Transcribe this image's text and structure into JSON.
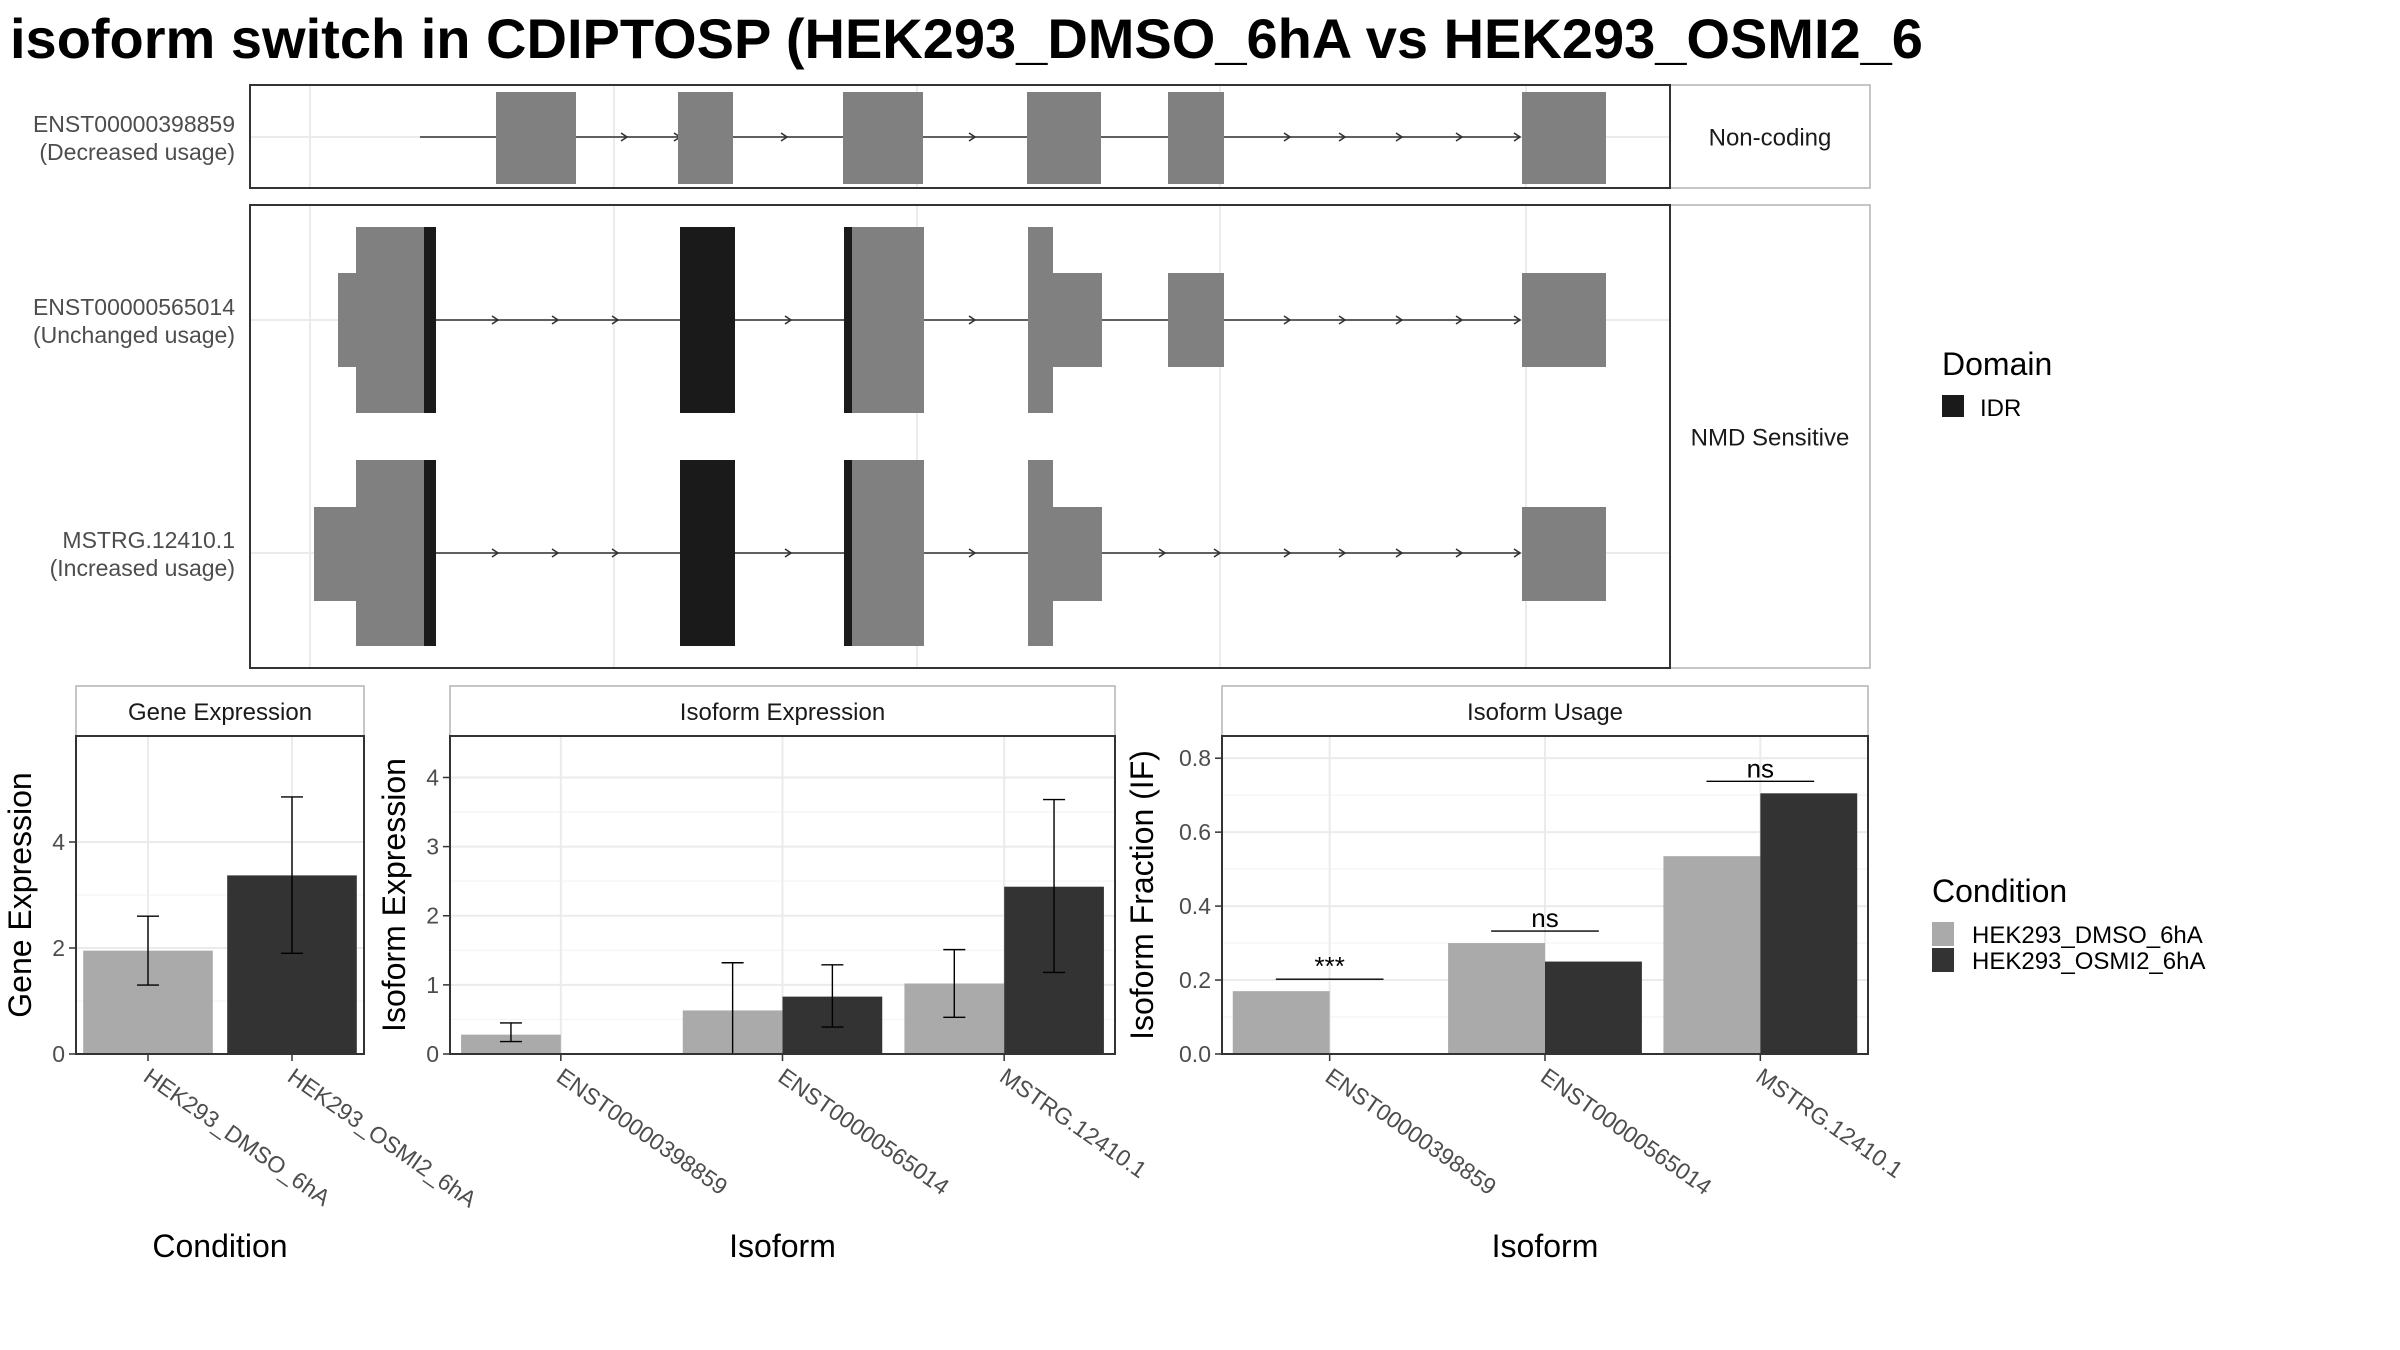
{
  "title": "isoform switch in CDIPTOSP (HEK293_DMSO_6hA vs HEK293_OSMI2_6",
  "colors": {
    "dmso": "#aaaaaa",
    "osmi2": "#333333",
    "exon": "#808080",
    "idr": "#1a1a1a",
    "strip_bg": "#ffffff",
    "grid": "#ebebeb",
    "panel_border": "#333333"
  },
  "structure": {
    "groups": [
      {
        "label": "Non-coding",
        "isoforms": [
          "ENST00000398859"
        ]
      },
      {
        "label": "NMD Sensitive",
        "isoforms": [
          "ENST00000565014",
          "MSTRG.12410.1"
        ]
      }
    ],
    "isoforms": [
      {
        "id": "ENST00000398859",
        "usage": "(Decreased usage)"
      },
      {
        "id": "ENST00000565014",
        "usage": "(Unchanged usage)"
      },
      {
        "id": "MSTRG.12410.1",
        "usage": "(Increased usage)"
      }
    ],
    "domain_legend_title": "Domain",
    "domain_legend_items": [
      "IDR"
    ]
  },
  "chart_data": [
    {
      "type": "bar",
      "title": "Gene Expression",
      "xlabel": "Condition",
      "ylabel": "Gene Expression",
      "categories": [
        "HEK293_DMSO_6hA",
        "HEK293_OSMI2_6hA"
      ],
      "values": [
        1.95,
        3.37
      ],
      "error_low": [
        1.3,
        1.9
      ],
      "error_high": [
        2.6,
        4.85
      ],
      "ylim": [
        0,
        6
      ],
      "yticks": [
        0,
        2,
        4
      ]
    },
    {
      "type": "bar",
      "title": "Isoform Expression",
      "xlabel": "Isoform",
      "ylabel": "Isoform Expression",
      "categories": [
        "ENST00000398859",
        "ENST00000565014",
        "MSTRG.12410.1"
      ],
      "series": [
        {
          "name": "HEK293_DMSO_6hA",
          "values": [
            0.28,
            0.63,
            1.02
          ],
          "error_low": [
            0.18,
            0.0,
            0.53
          ],
          "error_high": [
            0.45,
            1.32,
            1.51
          ]
        },
        {
          "name": "HEK293_OSMI2_6hA",
          "values": [
            0.0,
            0.83,
            2.42
          ],
          "error_low": [
            0.0,
            0.39,
            1.18
          ],
          "error_high": [
            0.0,
            1.29,
            3.68
          ]
        }
      ],
      "ylim": [
        0,
        4.6
      ],
      "yticks": [
        0,
        1,
        2,
        3,
        4
      ]
    },
    {
      "type": "bar",
      "title": "Isoform Usage",
      "xlabel": "Isoform",
      "ylabel": "Isoform Fraction (IF)",
      "categories": [
        "ENST00000398859",
        "ENST00000565014",
        "MSTRG.12410.1"
      ],
      "series": [
        {
          "name": "HEK293_DMSO_6hA",
          "values": [
            0.17,
            0.3,
            0.535
          ]
        },
        {
          "name": "HEK293_OSMI2_6hA",
          "values": [
            0.0,
            0.25,
            0.705
          ]
        }
      ],
      "significance": [
        "***",
        "ns",
        "ns"
      ],
      "ylim": [
        0,
        0.86
      ],
      "yticks": [
        "0.0",
        "0.2",
        "0.4",
        "0.6",
        "0.8"
      ]
    }
  ],
  "legend": {
    "title": "Condition",
    "items": [
      "HEK293_DMSO_6hA",
      "HEK293_OSMI2_6hA"
    ]
  }
}
